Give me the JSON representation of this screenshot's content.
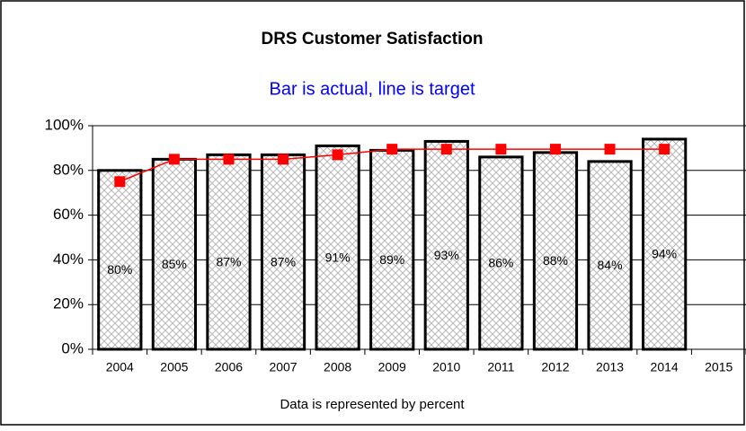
{
  "chart_data": {
    "type": "bar",
    "title": "DRS Customer Satisfaction",
    "subtitle": "Bar is actual, line is target",
    "x_label": "Data is represented by percent",
    "categories": [
      "2004",
      "2005",
      "2006",
      "2007",
      "2008",
      "2009",
      "2010",
      "2011",
      "2012",
      "2013",
      "2014",
      "2015"
    ],
    "series": [
      {
        "type": "bar",
        "color": "#000000",
        "values": [
          80,
          85,
          87,
          87,
          91,
          89,
          93,
          86,
          88,
          84,
          94,
          null
        ],
        "value_labels": [
          "80%",
          "85%",
          "87%",
          "87%",
          "91%",
          "89%",
          "93%",
          "86%",
          "88%",
          "84%",
          "94%",
          null
        ]
      },
      {
        "type": "line",
        "color": "#ff0000",
        "values": [
          75,
          85,
          85,
          85,
          87,
          89.5,
          89.5,
          89.5,
          89.5,
          89.5,
          89.5,
          null
        ]
      }
    ],
    "ylim": [
      0,
      100
    ],
    "yticks": [
      {
        "value": 0,
        "label": "0%"
      },
      {
        "value": 20,
        "label": "20%"
      },
      {
        "value": 40,
        "label": "40%"
      },
      {
        "value": 60,
        "label": "60%"
      },
      {
        "value": 80,
        "label": "80%"
      },
      {
        "value": 100,
        "label": "100%"
      }
    ],
    "grid": true
  }
}
